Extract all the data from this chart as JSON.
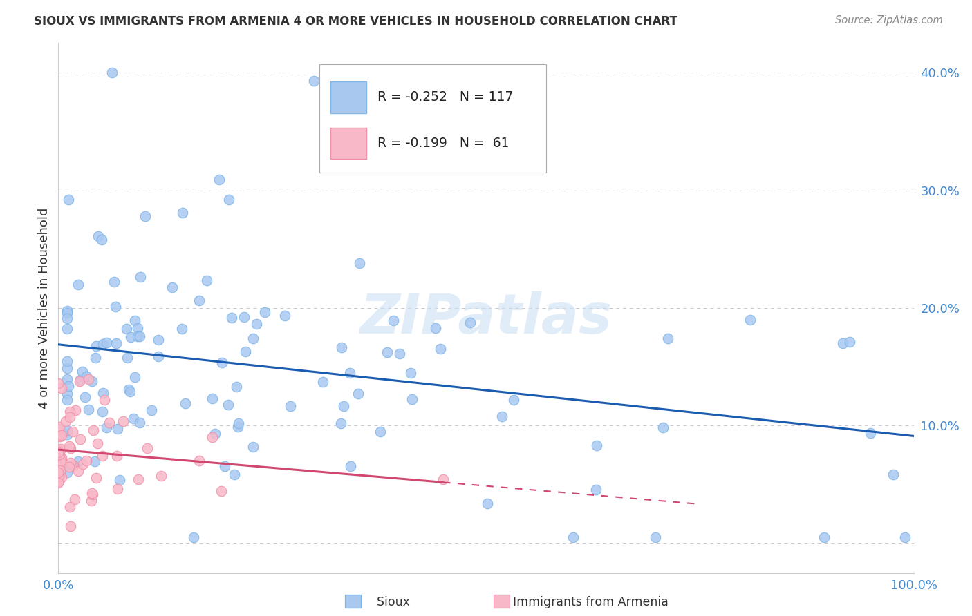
{
  "title": "SIOUX VS IMMIGRANTS FROM ARMENIA 4 OR MORE VEHICLES IN HOUSEHOLD CORRELATION CHART",
  "source": "Source: ZipAtlas.com",
  "ylabel": "4 or more Vehicles in Household",
  "watermark": "ZIPatlas",
  "xlim": [
    0.0,
    1.0
  ],
  "ylim": [
    -0.025,
    0.425
  ],
  "yticks": [
    0.0,
    0.1,
    0.2,
    0.3,
    0.4
  ],
  "ytick_labels": [
    "",
    "10.0%",
    "20.0%",
    "30.0%",
    "40.0%"
  ],
  "xticks": [
    0.0,
    0.25,
    0.5,
    0.75,
    1.0
  ],
  "xtick_labels": [
    "0.0%",
    "",
    "",
    "",
    "100.0%"
  ],
  "sioux_color": "#a8c8f0",
  "sioux_edge_color": "#7eb5e8",
  "armenia_color": "#f8b8c8",
  "armenia_edge_color": "#f090a8",
  "sioux_line_color": "#1a5cb0",
  "armenia_line_color": "#d04870",
  "legend_R_sioux": "-0.252",
  "legend_N_sioux": "117",
  "legend_R_armenia": "-0.199",
  "legend_N_armenia": " 61",
  "background_color": "#ffffff",
  "grid_color": "#c8c8d0",
  "title_color": "#333333",
  "source_color": "#888888",
  "tick_color": "#4488cc"
}
